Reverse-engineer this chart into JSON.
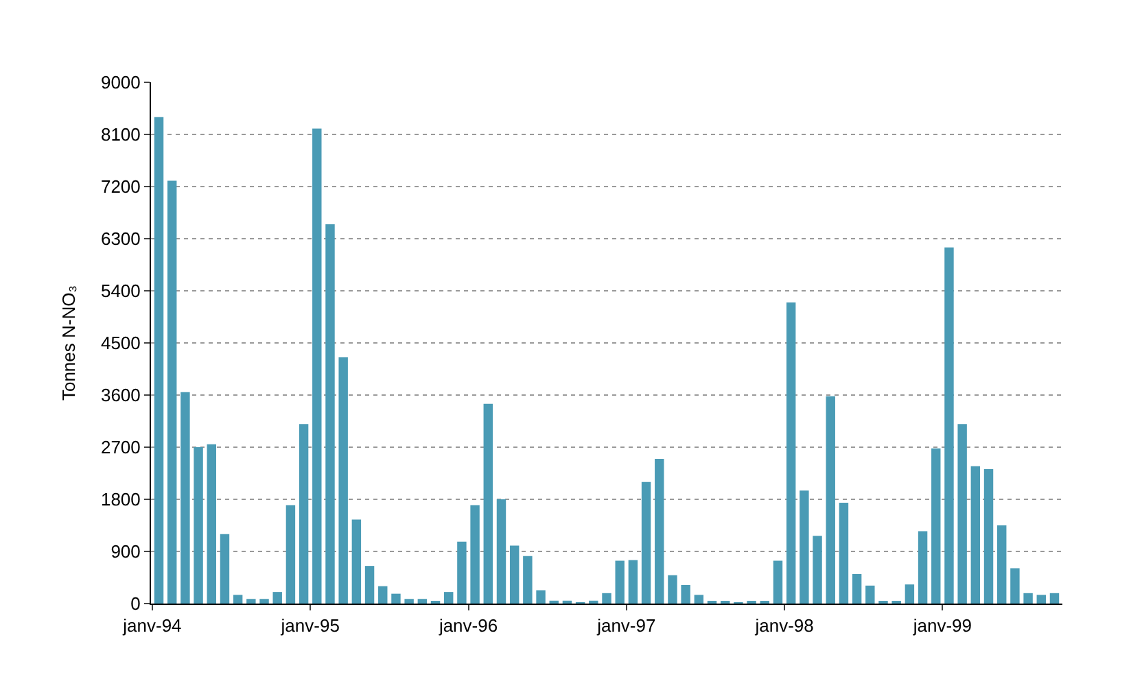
{
  "chart_data": {
    "type": "bar",
    "ylabel": "Tonnes N-NO₃",
    "categories": [
      "janv-94",
      null,
      null,
      null,
      null,
      null,
      null,
      null,
      null,
      null,
      null,
      null,
      "janv-95",
      null,
      null,
      null,
      null,
      null,
      null,
      null,
      null,
      null,
      null,
      null,
      "janv-96",
      null,
      null,
      null,
      null,
      null,
      null,
      null,
      null,
      null,
      null,
      null,
      "janv-97",
      null,
      null,
      null,
      null,
      null,
      null,
      null,
      null,
      null,
      null,
      null,
      "janv-98",
      null,
      null,
      null,
      null,
      null,
      null,
      null,
      null,
      null,
      null,
      null,
      "janv-99",
      null,
      null,
      null,
      null,
      null,
      null,
      null,
      null
    ],
    "values": [
      8400,
      7300,
      3650,
      2700,
      2750,
      1200,
      150,
      80,
      80,
      200,
      1700,
      3100,
      8200,
      6550,
      4250,
      1450,
      650,
      300,
      170,
      80,
      80,
      30,
      200,
      1070,
      1700,
      3450,
      1800,
      1000,
      820,
      230,
      50,
      50,
      20,
      50,
      180,
      740,
      750,
      2100,
      2500,
      490,
      320,
      150,
      40,
      40,
      20,
      40,
      40,
      740,
      5200,
      1950,
      1170,
      3580,
      1740,
      510,
      310,
      30,
      40,
      330,
      1250,
      2680,
      6150,
      3100,
      2370,
      2320,
      1350,
      610,
      180,
      150,
      180
    ],
    "color": "#4a9bb5",
    "ylim": [
      0,
      9000
    ],
    "yticks": [
      0,
      900,
      1800,
      2700,
      3600,
      4500,
      5400,
      6300,
      7200,
      8100,
      9000
    ],
    "grid": "y"
  }
}
